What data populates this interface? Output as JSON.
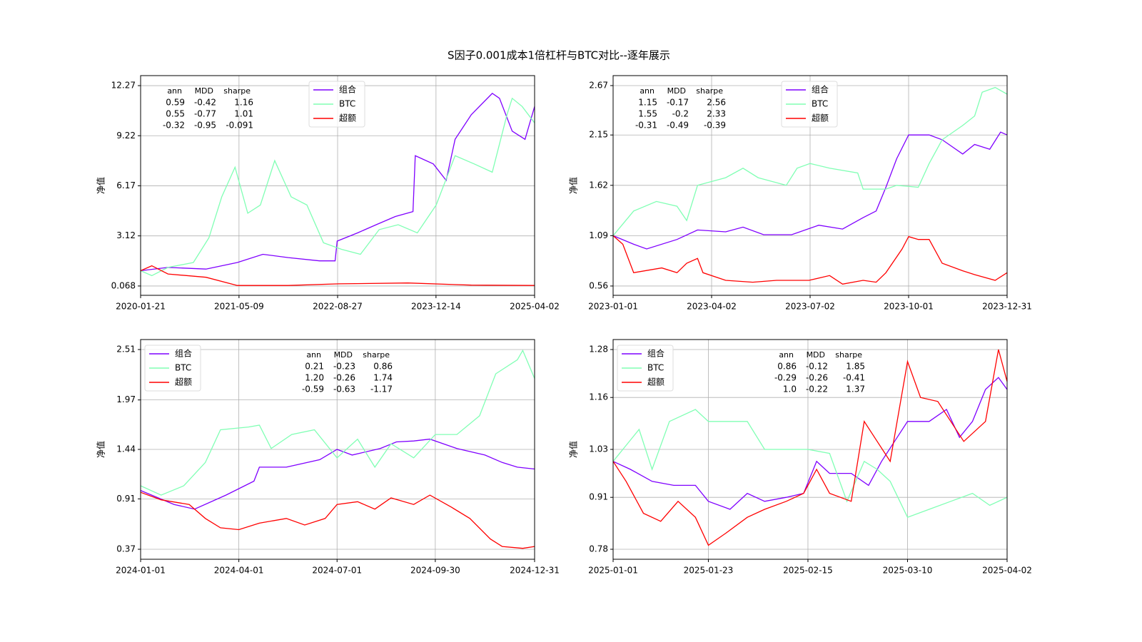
{
  "title": "S因子0.001成本1倍杠杆与BTC对比--逐年展示",
  "chart_data": [
    {
      "type": "line",
      "ylabel": "净值",
      "legend": "upper center",
      "grid": true,
      "xlim": [
        "2020-01-21",
        "2025-04-02"
      ],
      "xticks": [
        "2020-01-21",
        "2021-05-09",
        "2022-08-27",
        "2023-12-14",
        "2025-04-02"
      ],
      "ylim": [
        -0.5,
        12.88
      ],
      "yticks": [
        0.068,
        3.12,
        6.17,
        9.22,
        12.27
      ],
      "stats": {
        "header": [
          "ann",
          "MDD",
          "sharpe"
        ],
        "rows": [
          [
            "0.59",
            "-0.42",
            "1.16"
          ],
          [
            "0.55",
            "-0.77",
            "1.01"
          ],
          [
            "-0.32",
            "-0.95",
            "-0.091"
          ]
        ]
      },
      "series": [
        {
          "name": "组合",
          "color": "#7f00ff",
          "x": [
            "2020-01-21",
            "2020-06-01",
            "2020-12-01",
            "2021-05-01",
            "2021-09-01",
            "2022-01-01",
            "2022-06-01",
            "2022-08-15",
            "2022-08-25",
            "2022-12-01",
            "2023-03-01",
            "2023-06-01",
            "2023-08-25",
            "2023-09-05",
            "2023-12-01",
            "2024-02-01",
            "2024-03-15",
            "2024-06-01",
            "2024-09-10",
            "2024-10-15",
            "2024-12-15",
            "2025-02-15",
            "2025-04-02"
          ],
          "values": [
            1.0,
            1.2,
            1.1,
            1.5,
            2.0,
            1.8,
            1.6,
            1.6,
            2.8,
            3.3,
            3.8,
            4.3,
            4.6,
            8.0,
            7.5,
            6.5,
            9.0,
            10.5,
            11.8,
            11.5,
            9.5,
            9.0,
            11.0
          ]
        },
        {
          "name": "BTC",
          "color": "#80ffb4",
          "x": [
            "2020-01-21",
            "2020-03-15",
            "2020-06-01",
            "2020-10-01",
            "2020-12-15",
            "2021-02-15",
            "2021-04-20",
            "2021-06-20",
            "2021-08-20",
            "2021-10-28",
            "2022-01-15",
            "2022-04-01",
            "2022-06-20",
            "2022-09-15",
            "2022-12-15",
            "2023-03-15",
            "2023-06-15",
            "2023-09-15",
            "2023-12-15",
            "2024-03-15",
            "2024-06-15",
            "2024-09-10",
            "2024-11-20",
            "2024-12-15",
            "2025-02-01",
            "2025-04-02"
          ],
          "values": [
            1.0,
            0.7,
            1.2,
            1.5,
            3.0,
            5.5,
            7.3,
            4.5,
            5.0,
            7.7,
            5.5,
            5.0,
            2.7,
            2.3,
            2.0,
            3.5,
            3.8,
            3.3,
            5.0,
            8.0,
            7.5,
            7.0,
            10.5,
            11.5,
            11.0,
            10.0
          ]
        },
        {
          "name": "超额",
          "color": "#ff0000",
          "x": [
            "2020-01-21",
            "2020-03-15",
            "2020-06-01",
            "2020-12-01",
            "2021-05-01",
            "2022-01-01",
            "2022-09-01",
            "2023-08-01",
            "2024-06-01",
            "2025-04-02"
          ],
          "values": [
            1.0,
            1.3,
            0.8,
            0.6,
            0.1,
            0.1,
            0.2,
            0.25,
            0.12,
            0.1
          ]
        }
      ]
    },
    {
      "type": "line",
      "ylabel": "净值",
      "legend": "upper center",
      "grid": true,
      "xlim": [
        "2023-01-01",
        "2023-12-31"
      ],
      "xticks": [
        "2023-01-01",
        "2023-04-02",
        "2023-07-02",
        "2023-10-01",
        "2023-12-31"
      ],
      "ylim": [
        0.462,
        2.775
      ],
      "yticks": [
        0.56,
        1.09,
        1.62,
        2.15,
        2.67
      ],
      "stats": {
        "header": [
          "ann",
          "MDD",
          "sharpe"
        ],
        "rows": [
          [
            "1.15",
            "-0.17",
            "2.56"
          ],
          [
            "1.55",
            "-0.2",
            "2.33"
          ],
          [
            "-0.31",
            "-0.49",
            "-0.39"
          ]
        ]
      },
      "series": [
        {
          "name": "组合",
          "color": "#7f00ff",
          "x": [
            "2023-01-01",
            "2023-01-20",
            "2023-02-01",
            "2023-03-01",
            "2023-03-20",
            "2023-04-15",
            "2023-05-01",
            "2023-05-20",
            "2023-06-15",
            "2023-07-10",
            "2023-08-01",
            "2023-08-20",
            "2023-09-01",
            "2023-09-10",
            "2023-09-20",
            "2023-10-01",
            "2023-10-20",
            "2023-11-01",
            "2023-11-20",
            "2023-12-01",
            "2023-12-15",
            "2023-12-25",
            "2023-12-31"
          ],
          "values": [
            1.09,
            1.0,
            0.95,
            1.05,
            1.15,
            1.13,
            1.18,
            1.1,
            1.1,
            1.2,
            1.16,
            1.28,
            1.35,
            1.6,
            1.9,
            2.15,
            2.15,
            2.1,
            1.95,
            2.05,
            2.0,
            2.18,
            2.15
          ]
        },
        {
          "name": "BTC",
          "color": "#80ffb4",
          "x": [
            "2023-01-01",
            "2023-01-20",
            "2023-02-10",
            "2023-03-01",
            "2023-03-10",
            "2023-03-20",
            "2023-04-15",
            "2023-05-01",
            "2023-05-15",
            "2023-06-10",
            "2023-06-20",
            "2023-07-02",
            "2023-07-20",
            "2023-08-15",
            "2023-08-20",
            "2023-09-10",
            "2023-09-20",
            "2023-10-10",
            "2023-10-20",
            "2023-11-01",
            "2023-11-20",
            "2023-12-01",
            "2023-12-08",
            "2023-12-20",
            "2023-12-31"
          ],
          "values": [
            1.09,
            1.35,
            1.45,
            1.4,
            1.25,
            1.62,
            1.7,
            1.8,
            1.7,
            1.62,
            1.8,
            1.85,
            1.8,
            1.75,
            1.58,
            1.58,
            1.62,
            1.6,
            1.85,
            2.1,
            2.25,
            2.35,
            2.6,
            2.65,
            2.58
          ]
        },
        {
          "name": "超额",
          "color": "#ff0000",
          "x": [
            "2023-01-01",
            "2023-01-10",
            "2023-01-20",
            "2023-02-15",
            "2023-03-01",
            "2023-03-10",
            "2023-03-20",
            "2023-03-25",
            "2023-04-15",
            "2023-05-10",
            "2023-06-01",
            "2023-06-20",
            "2023-07-01",
            "2023-07-20",
            "2023-08-01",
            "2023-08-20",
            "2023-09-01",
            "2023-09-10",
            "2023-09-25",
            "2023-10-01",
            "2023-10-10",
            "2023-10-20",
            "2023-11-01",
            "2023-11-20",
            "2023-12-01",
            "2023-12-20",
            "2023-12-31"
          ],
          "values": [
            1.09,
            1.0,
            0.7,
            0.75,
            0.7,
            0.8,
            0.85,
            0.7,
            0.62,
            0.6,
            0.62,
            0.62,
            0.62,
            0.67,
            0.58,
            0.62,
            0.6,
            0.7,
            0.95,
            1.08,
            1.05,
            1.05,
            0.8,
            0.72,
            0.68,
            0.62,
            0.7
          ]
        }
      ]
    },
    {
      "type": "line",
      "ylabel": "净值",
      "legend": "upper left",
      "grid": true,
      "xlim": [
        "2024-01-01",
        "2024-12-31"
      ],
      "xticks": [
        "2024-01-01",
        "2024-04-01",
        "2024-07-01",
        "2024-09-30",
        "2024-12-31"
      ],
      "ylim": [
        0.263,
        2.617
      ],
      "yticks": [
        0.37,
        0.91,
        1.44,
        1.97,
        2.51
      ],
      "stats": {
        "header": [
          "ann",
          "MDD",
          "sharpe"
        ],
        "rows": [
          [
            "0.21",
            "-0.23",
            "0.86"
          ],
          [
            "1.20",
            "-0.26",
            "1.74"
          ],
          [
            "-0.59",
            "-0.63",
            "-1.17"
          ]
        ]
      },
      "series": [
        {
          "name": "组合",
          "color": "#7f00ff",
          "x": [
            "2024-01-01",
            "2024-02-01",
            "2024-02-20",
            "2024-03-20",
            "2024-04-15",
            "2024-04-20",
            "2024-05-15",
            "2024-06-15",
            "2024-07-01",
            "2024-07-15",
            "2024-08-10",
            "2024-08-25",
            "2024-09-10",
            "2024-09-25",
            "2024-10-20",
            "2024-11-15",
            "2024-12-01",
            "2024-12-15",
            "2024-12-31"
          ],
          "values": [
            1.0,
            0.85,
            0.8,
            0.95,
            1.1,
            1.25,
            1.25,
            1.33,
            1.44,
            1.38,
            1.45,
            1.52,
            1.53,
            1.55,
            1.45,
            1.38,
            1.3,
            1.25,
            1.23
          ]
        },
        {
          "name": "BTC",
          "color": "#80ffb4",
          "x": [
            "2024-01-01",
            "2024-01-20",
            "2024-02-10",
            "2024-03-01",
            "2024-03-15",
            "2024-04-10",
            "2024-04-20",
            "2024-05-01",
            "2024-05-20",
            "2024-06-10",
            "2024-07-01",
            "2024-07-20",
            "2024-08-05",
            "2024-08-20",
            "2024-09-10",
            "2024-09-30",
            "2024-10-20",
            "2024-11-10",
            "2024-11-25",
            "2024-12-15",
            "2024-12-20",
            "2024-12-31"
          ],
          "values": [
            1.05,
            0.95,
            1.05,
            1.3,
            1.65,
            1.68,
            1.7,
            1.45,
            1.6,
            1.65,
            1.35,
            1.55,
            1.25,
            1.5,
            1.35,
            1.6,
            1.6,
            1.8,
            2.25,
            2.4,
            2.5,
            2.2
          ]
        },
        {
          "name": "超额",
          "color": "#ff0000",
          "x": [
            "2024-01-01",
            "2024-01-20",
            "2024-02-15",
            "2024-03-01",
            "2024-03-15",
            "2024-04-01",
            "2024-04-20",
            "2024-05-15",
            "2024-06-01",
            "2024-06-20",
            "2024-07-01",
            "2024-07-20",
            "2024-08-05",
            "2024-08-20",
            "2024-09-10",
            "2024-09-25",
            "2024-10-15",
            "2024-11-01",
            "2024-11-20",
            "2024-12-01",
            "2024-12-20",
            "2024-12-31"
          ],
          "values": [
            0.98,
            0.9,
            0.85,
            0.7,
            0.6,
            0.58,
            0.65,
            0.7,
            0.63,
            0.7,
            0.85,
            0.88,
            0.8,
            0.92,
            0.85,
            0.95,
            0.82,
            0.7,
            0.48,
            0.4,
            0.38,
            0.4
          ]
        }
      ]
    },
    {
      "type": "line",
      "ylabel": "净值",
      "legend": "upper left",
      "grid": true,
      "xlim": [
        "2025-01-01",
        "2025-04-02"
      ],
      "xticks": [
        "2025-01-01",
        "2025-01-23",
        "2025-02-15",
        "2025-03-10",
        "2025-04-02"
      ],
      "ylim": [
        0.755,
        1.305
      ],
      "yticks": [
        0.78,
        0.91,
        1.03,
        1.16,
        1.28
      ],
      "stats": {
        "header": [
          "ann",
          "MDD",
          "sharpe"
        ],
        "rows": [
          [
            "0.86",
            "-0.12",
            "1.85"
          ],
          [
            "-0.29",
            "-0.26",
            "-0.41"
          ],
          [
            "1.0",
            "-0.22",
            "1.37"
          ]
        ]
      },
      "series": [
        {
          "name": "组合",
          "color": "#7f00ff",
          "x": [
            "2025-01-01",
            "2025-01-05",
            "2025-01-10",
            "2025-01-15",
            "2025-01-20",
            "2025-01-23",
            "2025-01-28",
            "2025-02-01",
            "2025-02-05",
            "2025-02-10",
            "2025-02-14",
            "2025-02-17",
            "2025-02-20",
            "2025-02-25",
            "2025-03-01",
            "2025-03-04",
            "2025-03-07",
            "2025-03-10",
            "2025-03-15",
            "2025-03-19",
            "2025-03-22",
            "2025-03-25",
            "2025-03-28",
            "2025-03-31",
            "2025-04-02"
          ],
          "values": [
            1.0,
            0.98,
            0.95,
            0.94,
            0.94,
            0.9,
            0.88,
            0.92,
            0.9,
            0.91,
            0.92,
            1.0,
            0.97,
            0.97,
            0.94,
            1.0,
            1.05,
            1.1,
            1.1,
            1.13,
            1.06,
            1.1,
            1.18,
            1.21,
            1.18
          ]
        },
        {
          "name": "BTC",
          "color": "#80ffb4",
          "x": [
            "2025-01-01",
            "2025-01-04",
            "2025-01-07",
            "2025-01-10",
            "2025-01-14",
            "2025-01-20",
            "2025-01-23",
            "2025-01-28",
            "2025-02-01",
            "2025-02-05",
            "2025-02-10",
            "2025-02-15",
            "2025-02-20",
            "2025-02-24",
            "2025-02-28",
            "2025-03-03",
            "2025-03-06",
            "2025-03-10",
            "2025-03-15",
            "2025-03-20",
            "2025-03-25",
            "2025-03-29",
            "2025-04-02"
          ],
          "values": [
            1.0,
            1.04,
            1.08,
            0.98,
            1.1,
            1.13,
            1.1,
            1.1,
            1.1,
            1.03,
            1.03,
            1.03,
            1.02,
            0.9,
            1.0,
            0.98,
            0.95,
            0.86,
            0.88,
            0.9,
            0.92,
            0.89,
            0.91
          ]
        },
        {
          "name": "超额",
          "color": "#ff0000",
          "x": [
            "2025-01-01",
            "2025-01-04",
            "2025-01-08",
            "2025-01-12",
            "2025-01-16",
            "2025-01-20",
            "2025-01-23",
            "2025-01-27",
            "2025-02-01",
            "2025-02-05",
            "2025-02-10",
            "2025-02-14",
            "2025-02-17",
            "2025-02-20",
            "2025-02-25",
            "2025-02-28",
            "2025-03-03",
            "2025-03-06",
            "2025-03-10",
            "2025-03-13",
            "2025-03-17",
            "2025-03-20",
            "2025-03-23",
            "2025-03-28",
            "2025-03-31",
            "2025-04-02"
          ],
          "values": [
            1.0,
            0.95,
            0.87,
            0.85,
            0.9,
            0.86,
            0.79,
            0.82,
            0.86,
            0.88,
            0.9,
            0.92,
            0.98,
            0.92,
            0.9,
            1.1,
            1.05,
            1.0,
            1.25,
            1.16,
            1.15,
            1.1,
            1.05,
            1.1,
            1.28,
            1.2
          ]
        }
      ]
    }
  ]
}
